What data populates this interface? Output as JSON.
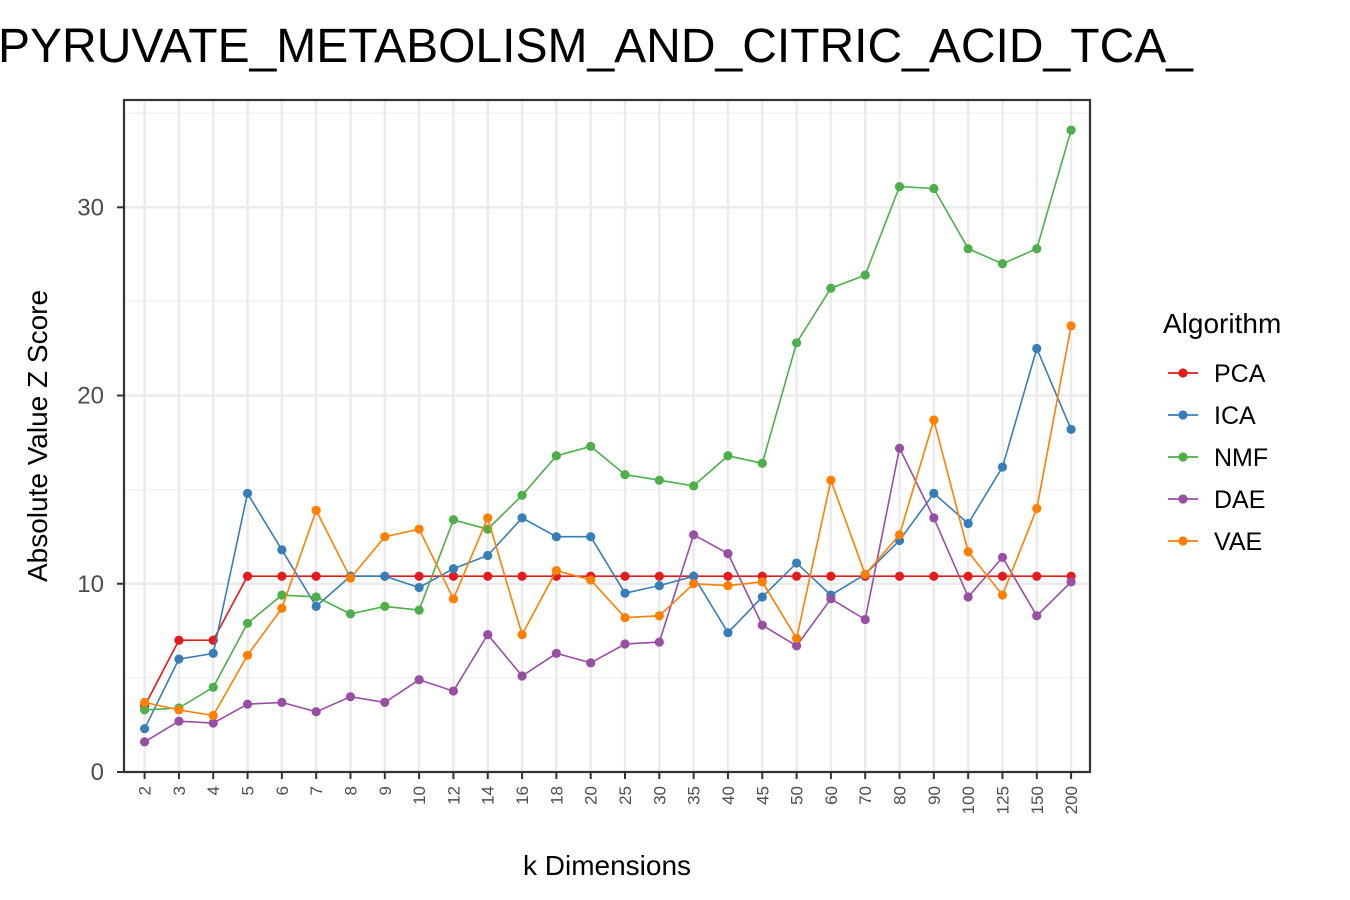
{
  "chart_data": {
    "type": "line",
    "title": "PYRUVATE_METABOLISM_AND_CITRIC_ACID_TCA_",
    "xlabel": "k Dimensions",
    "ylabel": "Absolute Value Z Score",
    "categories": [
      "2",
      "3",
      "4",
      "5",
      "6",
      "7",
      "8",
      "9",
      "10",
      "12",
      "14",
      "16",
      "18",
      "20",
      "25",
      "30",
      "35",
      "40",
      "45",
      "50",
      "60",
      "70",
      "80",
      "90",
      "100",
      "125",
      "150",
      "200"
    ],
    "ylim": [
      0,
      35.7
    ],
    "yticks": [
      0,
      10,
      20,
      30
    ],
    "grid": true,
    "legend": {
      "title": "Algorithm",
      "position": "right"
    },
    "series": [
      {
        "name": "PCA",
        "color": "#e41a1c",
        "values": [
          3.5,
          7.0,
          7.0,
          10.4,
          10.4,
          10.4,
          10.4,
          10.4,
          10.4,
          10.4,
          10.4,
          10.4,
          10.4,
          10.4,
          10.4,
          10.4,
          10.4,
          10.4,
          10.4,
          10.4,
          10.4,
          10.4,
          10.4,
          10.4,
          10.4,
          10.4,
          10.4,
          10.4
        ]
      },
      {
        "name": "ICA",
        "color": "#377eb8",
        "values": [
          2.3,
          6.0,
          6.3,
          14.8,
          11.8,
          8.8,
          10.4,
          10.4,
          9.8,
          10.8,
          11.5,
          13.5,
          12.5,
          12.5,
          9.5,
          9.9,
          10.4,
          7.4,
          9.3,
          11.1,
          9.4,
          10.5,
          12.3,
          14.8,
          13.2,
          16.2,
          22.5,
          18.2
        ]
      },
      {
        "name": "NMF",
        "color": "#4daf4a",
        "values": [
          3.3,
          3.4,
          4.5,
          7.9,
          9.4,
          9.3,
          8.4,
          8.8,
          8.6,
          13.4,
          12.9,
          14.7,
          16.8,
          17.3,
          15.8,
          15.5,
          15.2,
          16.8,
          16.4,
          22.8,
          25.7,
          26.4,
          31.1,
          31.0,
          27.8,
          27.0,
          27.8,
          34.1
        ]
      },
      {
        "name": "DAE",
        "color": "#984ea3",
        "values": [
          1.6,
          2.7,
          2.6,
          3.6,
          3.7,
          3.2,
          4.0,
          3.7,
          4.9,
          4.3,
          7.3,
          5.1,
          6.3,
          5.8,
          6.8,
          6.9,
          12.6,
          11.6,
          7.8,
          6.7,
          9.2,
          8.1,
          17.2,
          13.5,
          9.3,
          11.4,
          8.3,
          10.1
        ]
      },
      {
        "name": "VAE",
        "color": "#ff7f00",
        "values": [
          3.7,
          3.3,
          3.0,
          6.2,
          8.7,
          13.9,
          10.3,
          12.5,
          12.9,
          9.2,
          13.5,
          7.3,
          10.7,
          10.2,
          8.2,
          8.3,
          10.0,
          9.9,
          10.1,
          7.1,
          15.5,
          10.5,
          12.6,
          18.7,
          11.7,
          9.4,
          14.0,
          23.7
        ]
      }
    ]
  }
}
